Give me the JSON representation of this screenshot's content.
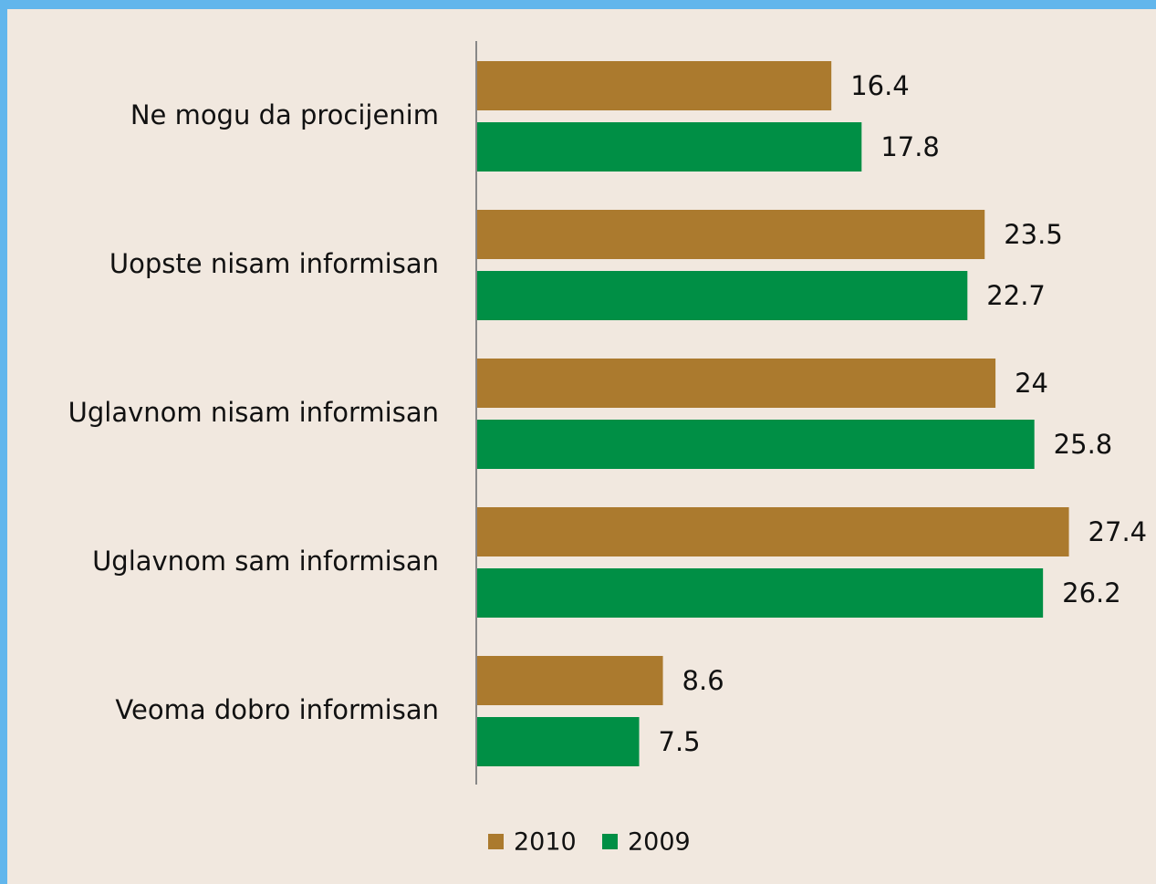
{
  "chart_data": {
    "type": "bar",
    "orientation": "horizontal",
    "categories": [
      "Ne mogu da procijenim",
      "Uopste nisam informisan",
      "Uglavnom nisam informisan",
      "Uglavnom sam informisan",
      "Veoma dobro informisan"
    ],
    "series": [
      {
        "name": "2010",
        "color": "#ab7a2e",
        "values": [
          16.4,
          23.5,
          24,
          27.4,
          8.6
        ]
      },
      {
        "name": "2009",
        "color": "#008f45",
        "values": [
          17.8,
          22.7,
          25.8,
          26.2,
          7.5
        ]
      }
    ],
    "legend": "bottom"
  }
}
